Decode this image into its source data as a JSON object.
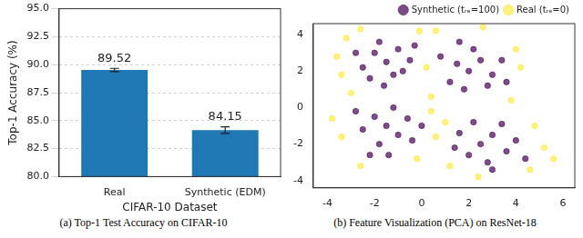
{
  "chart_data": [
    {
      "type": "bar",
      "title": "(a) Top-1 Test Accuracy on CIFAR-10",
      "x_label": "CIFAR-10 Dataset",
      "y_label": "Top-1 Accuracy (%)",
      "categories": [
        "Real",
        "Synthetic (EDM)"
      ],
      "values": [
        89.52,
        84.15
      ],
      "errors": [
        0.15,
        0.3
      ],
      "color": "#1f77b4",
      "ylim": [
        80,
        95
      ],
      "yticks": [
        {
          "value": 80,
          "label": "80.0"
        },
        {
          "value": 82.5,
          "label": "82.5"
        },
        {
          "value": 85,
          "label": "85.0"
        },
        {
          "value": 87.5,
          "label": "87.5"
        },
        {
          "value": 90,
          "label": "90.0"
        },
        {
          "value": 92.5,
          "label": "92.5"
        },
        {
          "value": 95,
          "label": "95.0"
        }
      ],
      "grid": true,
      "data_labels": true
    },
    {
      "type": "scatter",
      "title": "(b) Feature Visualization (PCA) on ResNet-18",
      "xlim": [
        -4.6,
        6.5
      ],
      "xticks": [
        -4,
        -2,
        0,
        2,
        4,
        6
      ],
      "ylim": [
        -4.4,
        4.6
      ],
      "yticks": [
        -4,
        -2,
        0,
        2,
        4
      ],
      "grid": false,
      "legend": "upper right",
      "series": [
        {
          "name": "Synthetic (tᵣₑ=100)",
          "color": "#440154",
          "marker": "circle",
          "x": [
            -1.5,
            -2,
            -1,
            -2.5,
            -1.2,
            -0.5,
            -1.8,
            -2.8,
            -0.8,
            -1.6,
            -2.2,
            -0.3,
            2,
            2.5,
            1.5,
            3,
            1.2,
            2.2,
            3.4,
            1.8,
            2.8,
            0.8,
            1.6,
            3.6,
            -1.5,
            -2,
            -1,
            -2.5,
            -0.6,
            -1.8,
            -1.2,
            -2.8,
            -0.4,
            -2.2,
            -1.4,
            0,
            2.5,
            3,
            2,
            3.6,
            1.6,
            2.8,
            4,
            2.2,
            3.4,
            1.4,
            4.4,
            3
          ],
          "y": [
            2.5,
            3,
            3.2,
            2.2,
            1.8,
            2.6,
            3.6,
            3,
            2,
            1.2,
            1.6,
            3.4,
            2,
            2.6,
            2.4,
            1.8,
            1.4,
            3.2,
            2.6,
            1,
            1.2,
            2.8,
            3.6,
            1.4,
            -1,
            -0.5,
            -1.5,
            -1.2,
            -0.6,
            -2,
            0,
            -0.2,
            -1.8,
            -2.6,
            -2.6,
            -1,
            -2,
            -1.5,
            -2.6,
            -2.4,
            -1.4,
            -3,
            -1.8,
            -0.8,
            -0.9,
            -2.2,
            -2.8,
            -3.4
          ]
        },
        {
          "name": "Real (tᵣₑ=0)",
          "color": "#fde725",
          "marker": "circle",
          "x": [
            -3.2,
            -3.4,
            -0.1,
            -2.6,
            0.2,
            -3.6,
            4,
            0.6,
            4.2,
            0.4,
            2.6,
            3.8,
            -3.4,
            -3,
            0.4,
            -2.6,
            -0.2,
            -3.8,
            5.2,
            4.6,
            1,
            4.8,
            1.2,
            5.6,
            2.4,
            0.6
          ],
          "y": [
            3.8,
            1.8,
            4.2,
            4.3,
            2.2,
            2.8,
            3.2,
            4.2,
            2.2,
            0.6,
            4.4,
            0.4,
            -1.6,
            0.8,
            -0.2,
            -3.2,
            -2.8,
            -0.6,
            -2.2,
            -3.4,
            -0.8,
            -1,
            -3.2,
            -2.8,
            -3.8,
            -1.6
          ]
        }
      ]
    }
  ]
}
